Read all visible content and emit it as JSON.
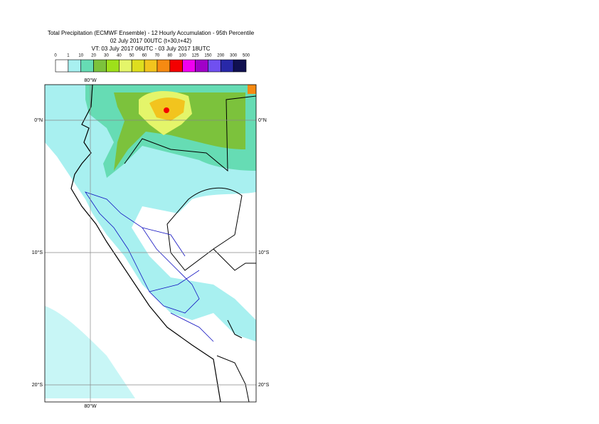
{
  "header": {
    "lines": [
      "Total Precipitation (ECMWF Ensemble) - 12 Hourly Accumulation - 95th Percentile",
      "02 July 2017 00UTC (t+30,t+42)",
      "VT: 03 July 2017 06UTC - 03 July 2017 18UTC"
    ]
  },
  "legend": {
    "labels": [
      "0",
      "1",
      "10",
      "20",
      "30",
      "40",
      "50",
      "60",
      "70",
      "80",
      "100",
      "125",
      "150",
      "200",
      "300",
      "500"
    ],
    "colors": [
      "#ffffff",
      "#a8f0f0",
      "#66dcb4",
      "#7cc23c",
      "#9ee01a",
      "#e4f56a",
      "#dede1e",
      "#f2c41e",
      "#f68a12",
      "#f40000",
      "#f000f0",
      "#a000c8",
      "#7050f0",
      "#2828a8",
      "#101050"
    ]
  },
  "map": {
    "lon_labels": [
      "80°W"
    ],
    "lat_labels": [
      "0°N",
      "10°S",
      "20°S"
    ]
  }
}
